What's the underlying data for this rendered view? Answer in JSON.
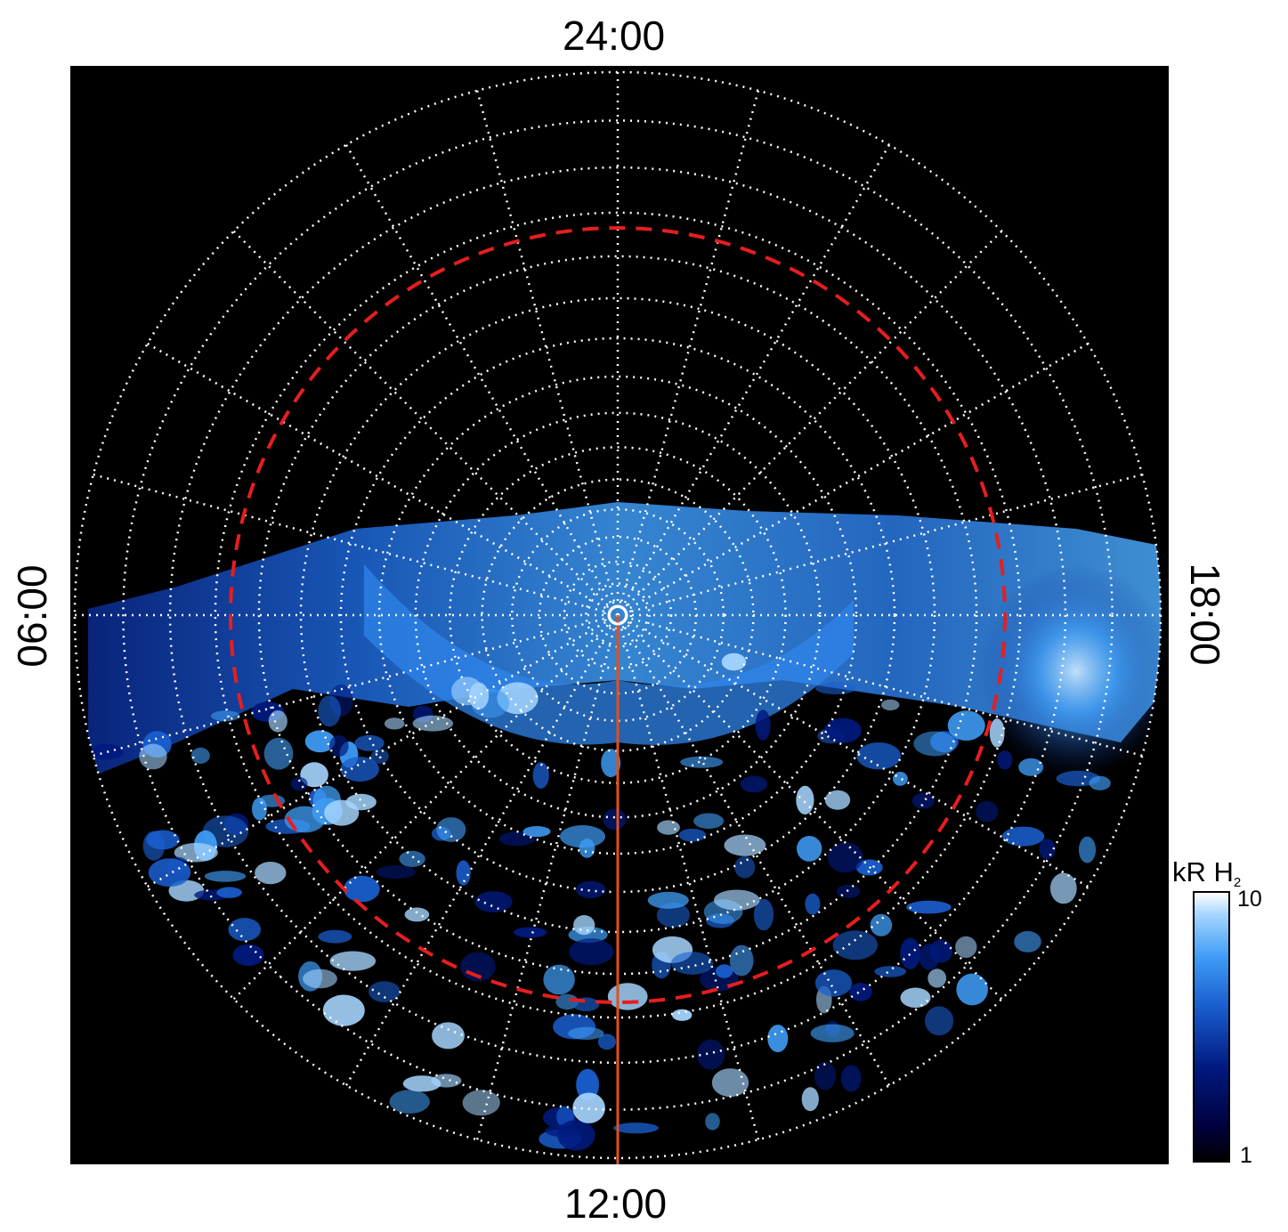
{
  "labels": {
    "top": "24:00",
    "bottom": "12:00",
    "left": "06:00",
    "right": "18:00"
  },
  "colorbar": {
    "title_main": "kR H",
    "title_sub": "2",
    "max_label": "10",
    "min_label": "1",
    "colors": [
      "#000000",
      "#00003c",
      "#001a80",
      "#1a5fd0",
      "#3f9cf5",
      "#a6d6ff",
      "#ffffff"
    ]
  },
  "colors": {
    "background": "#000000",
    "grid": "#ffffff",
    "reference_circle": "#e61e1e",
    "meridian_line": "#e0501e"
  },
  "grid": {
    "meridian_step_hours": 1,
    "circle_count": 16
  }
}
